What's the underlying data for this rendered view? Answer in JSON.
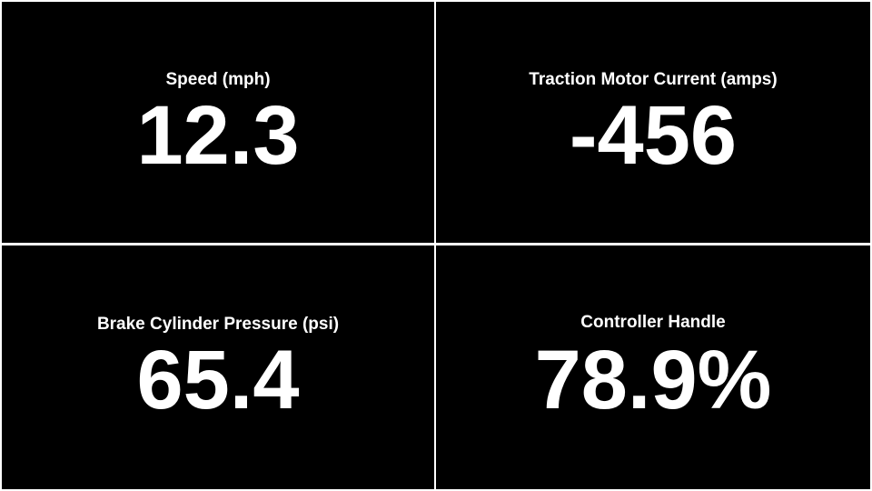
{
  "panels": [
    {
      "label": "Speed (mph)",
      "value": "12.3"
    },
    {
      "label": "Traction Motor Current (amps)",
      "value": "-456"
    },
    {
      "label": "Brake Cylinder Pressure (psi)",
      "value": "65.4"
    },
    {
      "label": "Controller Handle",
      "value": "78.9%"
    }
  ],
  "colors": {
    "panel_background": "#000000",
    "text": "#ffffff",
    "grid_lines": "#ffffff"
  }
}
